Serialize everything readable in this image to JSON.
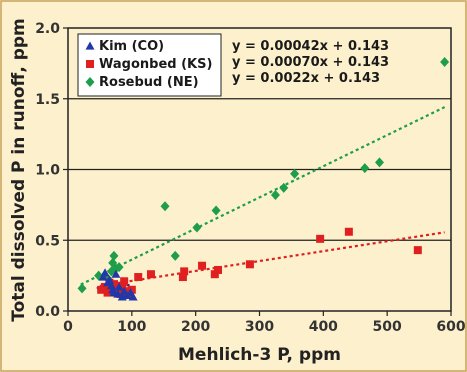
{
  "chart_data": {
    "type": "scatter",
    "xlabel": "Mehlich-3 P, ppm",
    "ylabel": "Total dissolved P in runoff, ppm",
    "xlim": [
      0,
      600
    ],
    "ylim": [
      0,
      2.0
    ],
    "x_ticks": [
      "0",
      "100",
      "200",
      "300",
      "400",
      "500",
      "600"
    ],
    "y_ticks": [
      "0.0",
      "0.5",
      "1.0",
      "1.5",
      "2.0"
    ],
    "grid": "horizontal",
    "legend_position": "top-left",
    "series": [
      {
        "name": "Kim (CO)",
        "marker": "triangle",
        "color": "#2338a8",
        "points": [
          [
            55,
            0.24
          ],
          [
            58,
            0.27
          ],
          [
            62,
            0.2
          ],
          [
            65,
            0.22
          ],
          [
            68,
            0.18
          ],
          [
            70,
            0.15
          ],
          [
            72,
            0.13
          ],
          [
            75,
            0.26
          ],
          [
            78,
            0.12
          ],
          [
            80,
            0.17
          ],
          [
            85,
            0.1
          ],
          [
            88,
            0.14
          ],
          [
            92,
            0.11
          ],
          [
            98,
            0.13
          ],
          [
            102,
            0.1
          ]
        ],
        "trendline": {
          "slope": 0.00042,
          "intercept": 0.143,
          "x_range": [
            45,
            100
          ],
          "color": "#1f2aa0"
        }
      },
      {
        "name": "Wagonbed (KS)",
        "marker": "square",
        "color": "#e02020",
        "points": [
          [
            52,
            0.15
          ],
          [
            58,
            0.17
          ],
          [
            62,
            0.13
          ],
          [
            65,
            0.2
          ],
          [
            68,
            0.16
          ],
          [
            72,
            0.19
          ],
          [
            75,
            0.13
          ],
          [
            78,
            0.15
          ],
          [
            82,
            0.12
          ],
          [
            85,
            0.17
          ],
          [
            88,
            0.21
          ],
          [
            92,
            0.14
          ],
          [
            96,
            0.12
          ],
          [
            100,
            0.15
          ],
          [
            110,
            0.24
          ],
          [
            130,
            0.26
          ],
          [
            180,
            0.24
          ],
          [
            182,
            0.28
          ],
          [
            210,
            0.32
          ],
          [
            230,
            0.26
          ],
          [
            235,
            0.29
          ],
          [
            285,
            0.33
          ],
          [
            395,
            0.51
          ],
          [
            440,
            0.56
          ],
          [
            548,
            0.43
          ]
        ],
        "trendline": {
          "slope": 0.0007,
          "intercept": 0.143,
          "x_range": [
            50,
            590
          ],
          "color": "#e02020"
        }
      },
      {
        "name": "Rosebud (NE)",
        "marker": "diamond",
        "color": "#1e9e4a",
        "points": [
          [
            22,
            0.16
          ],
          [
            48,
            0.25
          ],
          [
            62,
            0.23
          ],
          [
            68,
            0.28
          ],
          [
            70,
            0.34
          ],
          [
            72,
            0.39
          ],
          [
            75,
            0.3
          ],
          [
            80,
            0.31
          ],
          [
            152,
            0.74
          ],
          [
            168,
            0.39
          ],
          [
            202,
            0.59
          ],
          [
            232,
            0.71
          ],
          [
            325,
            0.82
          ],
          [
            338,
            0.87
          ],
          [
            355,
            0.97
          ],
          [
            465,
            1.01
          ],
          [
            488,
            1.05
          ],
          [
            590,
            1.76
          ]
        ],
        "trendline": {
          "slope": 0.0022,
          "intercept": 0.143,
          "x_range": [
            20,
            590
          ],
          "color": "#1e9e4a"
        }
      }
    ],
    "equations": [
      "y = 0.00042x + 0.143",
      "y = 0.00070x + 0.143",
      "y = 0.0022x + 0.143"
    ]
  }
}
